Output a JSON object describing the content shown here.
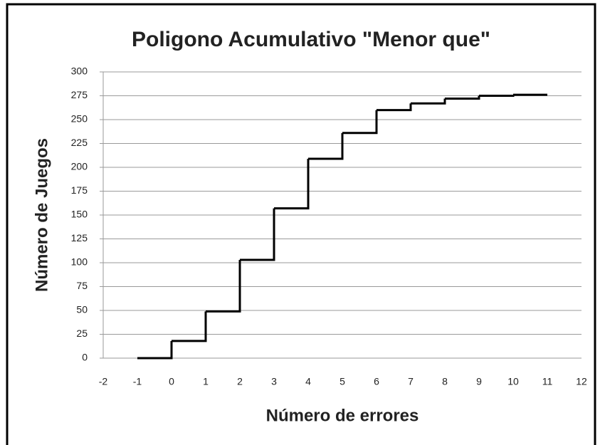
{
  "chart_data": {
    "type": "line",
    "step": "post",
    "title": "Poligono Acumulativo \"Menor que\"",
    "x_label": "Número de errores",
    "y_label": "Número de Juegos",
    "x": [
      -1,
      0,
      1,
      2,
      3,
      4,
      5,
      6,
      7,
      8,
      9,
      10,
      11
    ],
    "values": [
      0,
      18,
      49,
      103,
      157,
      209,
      236,
      260,
      267,
      272,
      275,
      276,
      276
    ],
    "color": "#000000",
    "xlim": [
      -2,
      12
    ],
    "xticks": [
      -2,
      -1,
      0,
      1,
      2,
      3,
      4,
      5,
      6,
      7,
      8,
      9,
      10,
      11,
      12
    ],
    "ylim": [
      0,
      300
    ],
    "yticks": [
      0,
      25,
      50,
      75,
      100,
      125,
      150,
      175,
      200,
      225,
      250,
      275,
      300
    ],
    "grid": true
  }
}
